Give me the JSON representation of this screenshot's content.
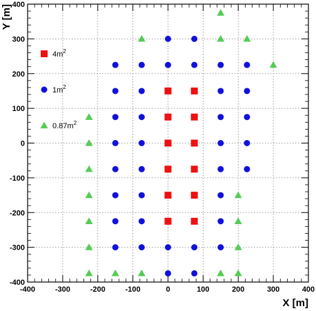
{
  "chart_data": {
    "type": "scatter",
    "title": "",
    "xlabel": "X [m]",
    "ylabel": "Y [m]",
    "xlim": [
      -400,
      400
    ],
    "ylim": [
      -400,
      400
    ],
    "x_ticks": [
      "-400",
      "-300",
      "-200",
      "-100",
      "0",
      "100",
      "200",
      "300",
      "400"
    ],
    "y_ticks": [
      "-400",
      "-300",
      "-200",
      "-100",
      "0",
      "100",
      "200",
      "300",
      "400"
    ],
    "grid": true,
    "legend_position": "left",
    "series": [
      {
        "name": "4m2",
        "legend_label": "4m",
        "legend_superscript": "2",
        "marker": "square",
        "color": "#ee1111",
        "points": [
          [
            0,
            150
          ],
          [
            75,
            150
          ],
          [
            0,
            75
          ],
          [
            75,
            75
          ],
          [
            0,
            0
          ],
          [
            75,
            0
          ],
          [
            0,
            -75
          ],
          [
            75,
            -75
          ],
          [
            0,
            -150
          ],
          [
            75,
            -150
          ],
          [
            0,
            -225
          ],
          [
            75,
            -225
          ]
        ]
      },
      {
        "name": "1m2",
        "legend_label": "1m",
        "legend_superscript": "2",
        "marker": "circle",
        "color": "#1111dd",
        "points": [
          [
            0,
            300
          ],
          [
            75,
            300
          ],
          [
            -150,
            225
          ],
          [
            -75,
            225
          ],
          [
            0,
            225
          ],
          [
            75,
            225
          ],
          [
            150,
            225
          ],
          [
            225,
            225
          ],
          [
            -150,
            150
          ],
          [
            -75,
            150
          ],
          [
            150,
            150
          ],
          [
            225,
            150
          ],
          [
            -150,
            75
          ],
          [
            -75,
            75
          ],
          [
            150,
            75
          ],
          [
            225,
            75
          ],
          [
            -150,
            0
          ],
          [
            -75,
            0
          ],
          [
            150,
            0
          ],
          [
            225,
            0
          ],
          [
            -150,
            -75
          ],
          [
            -75,
            -75
          ],
          [
            150,
            -75
          ],
          [
            225,
            -75
          ],
          [
            -150,
            -150
          ],
          [
            -75,
            -150
          ],
          [
            150,
            -150
          ],
          [
            -150,
            -225
          ],
          [
            -75,
            -225
          ],
          [
            150,
            -225
          ],
          [
            -150,
            -300
          ],
          [
            -75,
            -300
          ],
          [
            0,
            -300
          ],
          [
            75,
            -300
          ],
          [
            150,
            -300
          ],
          [
            0,
            -375
          ],
          [
            75,
            -375
          ]
        ]
      },
      {
        "name": "0.87m2",
        "legend_label": "0.87m",
        "legend_superscript": "2",
        "marker": "triangle",
        "color": "#55cc55",
        "points": [
          [
            150,
            375
          ],
          [
            -75,
            300
          ],
          [
            150,
            300
          ],
          [
            225,
            300
          ],
          [
            300,
            225
          ],
          [
            -225,
            75
          ],
          [
            -225,
            0
          ],
          [
            -225,
            -75
          ],
          [
            -225,
            -150
          ],
          [
            200,
            -150
          ],
          [
            -225,
            -225
          ],
          [
            200,
            -225
          ],
          [
            -225,
            -300
          ],
          [
            200,
            -300
          ],
          [
            -225,
            -375
          ],
          [
            -150,
            -375
          ],
          [
            -75,
            -375
          ],
          [
            150,
            -375
          ],
          [
            200,
            -375
          ]
        ]
      }
    ]
  }
}
